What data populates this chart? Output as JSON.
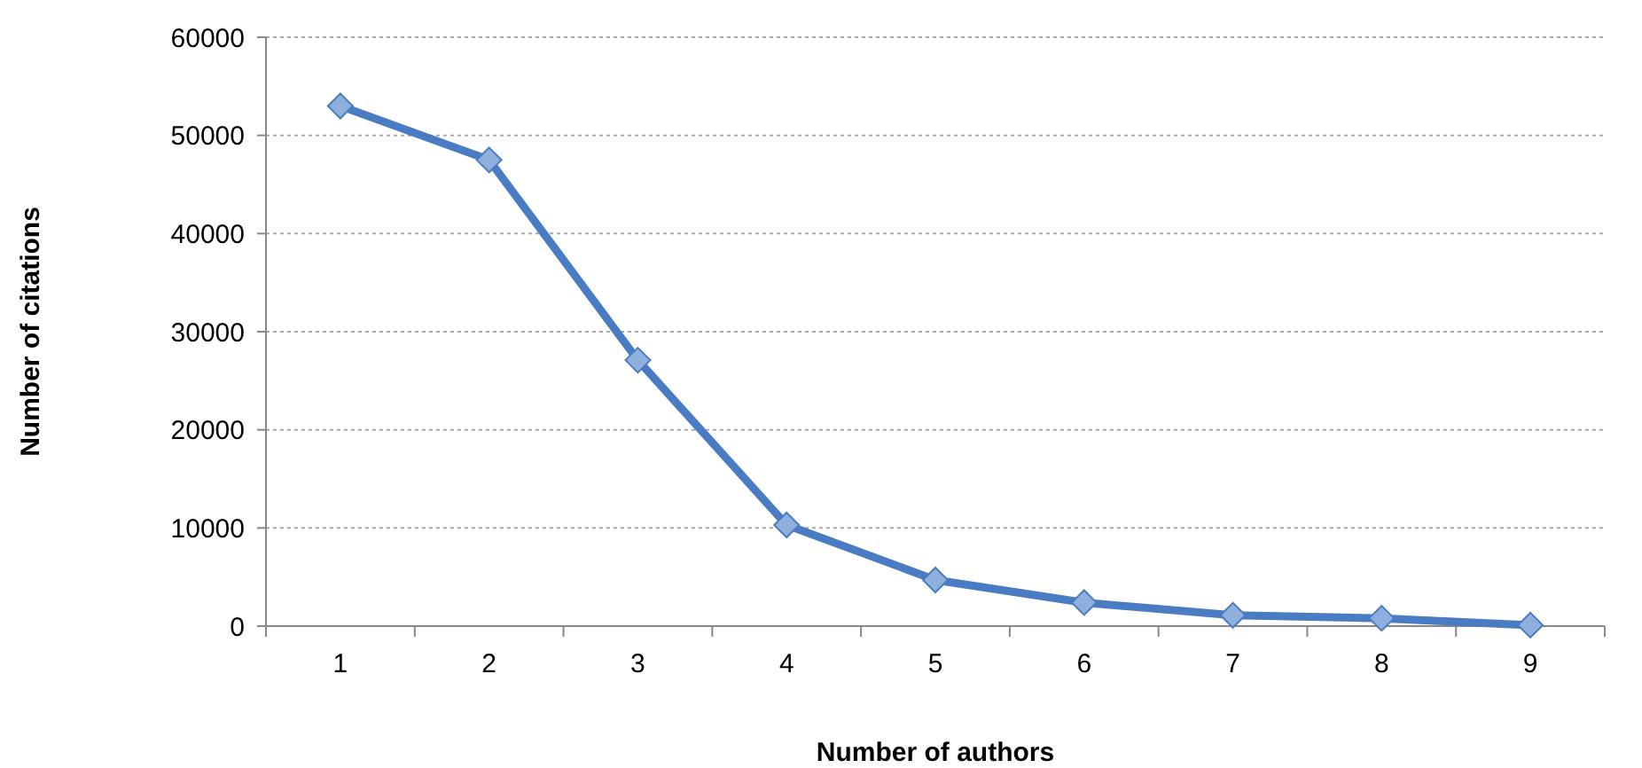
{
  "chart_data": {
    "type": "line",
    "xlabel": "Number of authors",
    "ylabel": "Number of citations",
    "categories": [
      "1",
      "2",
      "3",
      "4",
      "5",
      "6",
      "7",
      "8",
      "9"
    ],
    "series": [
      {
        "color": "#4a7cc4",
        "values": [
          53000,
          47500,
          27100,
          10300,
          4700,
          2400,
          1100,
          800,
          100
        ]
      }
    ],
    "ylim": [
      0,
      60000
    ],
    "yticks": [
      0,
      10000,
      20000,
      30000,
      40000,
      50000,
      60000
    ],
    "grid": "y",
    "marker": "diamond",
    "line_style": "solid"
  }
}
